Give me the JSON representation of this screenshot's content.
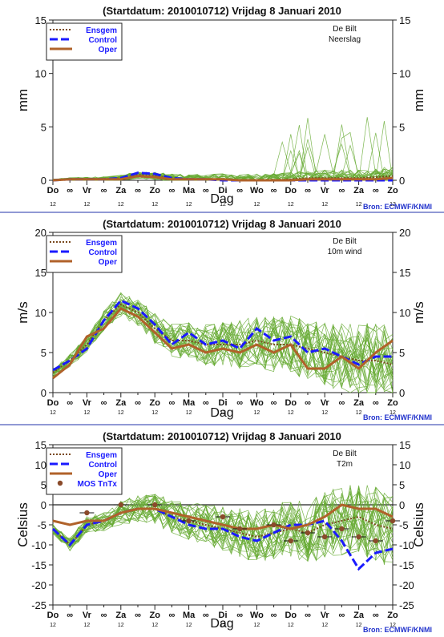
{
  "chart_data": [
    {
      "type": "line",
      "title": "(Startdatum: 2010010712)   Vrijdag    8 Januari   2010",
      "location": "De Bilt",
      "variable": "Neerslag",
      "ylabel": "mm",
      "xlabel": "Dag",
      "ylim": [
        0,
        15
      ],
      "yticks": [
        "0",
        "5",
        "10",
        "15"
      ],
      "days": [
        "Do",
        "Vr",
        "Za",
        "Zo",
        "Ma",
        "Di",
        "Wo",
        "Do",
        "Vr",
        "Za",
        "Zo"
      ],
      "hour_label": "12",
      "source": "Bron: ECMWF/KNMI",
      "legend": [
        "Ensgem",
        "Control",
        "Oper"
      ],
      "x_hours": [
        0,
        12,
        24,
        36,
        48,
        60,
        72,
        84,
        96,
        108,
        120,
        132,
        144,
        156,
        168,
        180,
        192,
        204,
        216,
        228,
        240
      ],
      "series": [
        {
          "name": "Ensgem",
          "values": [
            0.0,
            0.1,
            0.1,
            0.1,
            0.2,
            0.5,
            0.4,
            0.2,
            0.1,
            0.1,
            0.1,
            0.0,
            0.0,
            0.0,
            0.1,
            0.2,
            0.2,
            0.2,
            0.2,
            0.3,
            0.4
          ]
        },
        {
          "name": "Control",
          "values": [
            0.0,
            0.1,
            0.1,
            0.1,
            0.2,
            0.7,
            0.6,
            0.2,
            0.1,
            0.1,
            0.0,
            0.0,
            0.0,
            0.0,
            0.0,
            0.0,
            0.0,
            0.0,
            0.0,
            0.0,
            0.0
          ]
        },
        {
          "name": "Oper",
          "values": [
            0.0,
            0.1,
            0.1,
            0.1,
            0.1,
            0.4,
            0.3,
            0.1,
            0.1,
            0.1,
            0.1,
            0.0,
            0.0,
            0.0,
            0.0,
            0.1,
            0.1,
            0.1,
            0.1,
            0.1,
            0.2
          ]
        }
      ]
    },
    {
      "type": "line",
      "title": "(Startdatum: 2010010712)   Vrijdag    8 Januari   2010",
      "location": "De Bilt",
      "variable": "10m wind",
      "ylabel": "m/s",
      "xlabel": "Dag",
      "ylim": [
        0,
        20
      ],
      "yticks": [
        "0",
        "5",
        "10",
        "15",
        "20"
      ],
      "days": [
        "Do",
        "Vr",
        "Za",
        "Zo",
        "Ma",
        "Di",
        "Wo",
        "Do",
        "Vr",
        "Za",
        "Zo"
      ],
      "hour_label": "12",
      "source": "Bron: ECMWF/KNMI",
      "legend": [
        "Ensgem",
        "Control",
        "Oper"
      ],
      "x_hours": [
        0,
        12,
        24,
        36,
        48,
        60,
        72,
        84,
        96,
        108,
        120,
        132,
        144,
        156,
        168,
        180,
        192,
        204,
        216,
        228,
        240
      ],
      "series": [
        {
          "name": "Ensgem",
          "values": [
            2.5,
            4.0,
            6.0,
            9.0,
            11.0,
            10.0,
            8.0,
            6.5,
            6.5,
            6.0,
            6.0,
            6.0,
            6.5,
            6.0,
            6.0,
            5.5,
            5.0,
            4.5,
            4.0,
            4.0,
            3.5
          ]
        },
        {
          "name": "Control",
          "values": [
            2.8,
            4.0,
            5.5,
            9.0,
            11.5,
            10.5,
            8.5,
            6.0,
            7.5,
            6.0,
            6.5,
            5.5,
            8.0,
            6.5,
            7.0,
            5.0,
            5.5,
            4.5,
            3.5,
            4.5,
            4.5
          ]
        },
        {
          "name": "Oper",
          "values": [
            1.8,
            3.5,
            7.0,
            8.0,
            10.5,
            9.5,
            7.5,
            5.5,
            6.0,
            5.0,
            5.5,
            5.0,
            6.0,
            5.0,
            6.0,
            3.0,
            3.0,
            4.5,
            3.0,
            5.0,
            6.5
          ]
        }
      ]
    },
    {
      "type": "line",
      "title": "(Startdatum: 2010010712)   Vrijdag    8 Januari   2010",
      "location": "De Bilt",
      "variable": "T2m",
      "ylabel": "Celsius",
      "xlabel": "Dag",
      "ylim": [
        -25,
        15
      ],
      "yticks": [
        "-25",
        "-20",
        "-15",
        "-10",
        "-5",
        "0",
        "5",
        "10",
        "15"
      ],
      "days": [
        "Do",
        "Vr",
        "Za",
        "Zo",
        "Ma",
        "Di",
        "Wo",
        "Do",
        "Vr",
        "Za",
        "Zo"
      ],
      "hour_label": "12",
      "source": "Bron: ECMWF/KNMI",
      "legend": [
        "Ensgem",
        "Control",
        "Oper",
        "MOS TnTx"
      ],
      "x_hours": [
        0,
        12,
        24,
        36,
        48,
        60,
        72,
        84,
        96,
        108,
        120,
        132,
        144,
        156,
        168,
        180,
        192,
        204,
        216,
        228,
        240
      ],
      "series": [
        {
          "name": "Ensgem",
          "values": [
            -6,
            -10,
            -5,
            -4,
            -2,
            -1,
            -1,
            -3,
            -4,
            -5,
            -6,
            -7,
            -8,
            -7,
            -6,
            -7,
            -5,
            -4,
            -3,
            -5,
            -6
          ]
        },
        {
          "name": "Control",
          "values": [
            -6,
            -10,
            -5,
            -4,
            -2,
            -1,
            -1,
            -3,
            -5,
            -6,
            -6,
            -8,
            -9,
            -7,
            -5,
            -5,
            -4,
            -9,
            -16,
            -12,
            -11
          ]
        },
        {
          "name": "Oper",
          "values": [
            -4,
            -5,
            -4,
            -4,
            -2,
            -1,
            -1,
            -2,
            -3,
            -4,
            -5,
            -6,
            -6,
            -5,
            -6,
            -5,
            -3,
            0,
            -1,
            -1,
            -3
          ]
        }
      ],
      "mos_points": [
        {
          "x": 24,
          "y": -2
        },
        {
          "x": 48,
          "y": 0
        },
        {
          "x": 72,
          "y": 0
        },
        {
          "x": 96,
          "y": -4
        },
        {
          "x": 120,
          "y": -3
        },
        {
          "x": 132,
          "y": -6
        },
        {
          "x": 156,
          "y": -5
        },
        {
          "x": 168,
          "y": -9
        },
        {
          "x": 180,
          "y": -7
        },
        {
          "x": 192,
          "y": -8
        },
        {
          "x": 204,
          "y": -6
        },
        {
          "x": 216,
          "y": -8
        },
        {
          "x": 228,
          "y": -9
        },
        {
          "x": 240,
          "y": -4
        }
      ]
    }
  ],
  "colors": {
    "ensemble": "#66aa33",
    "ensgem": "#7a4a1e",
    "control": "#1a1aff",
    "oper": "#b0622a",
    "mos": "#8a4a2a",
    "separator": "#2233aa",
    "source": "#2233cc"
  }
}
